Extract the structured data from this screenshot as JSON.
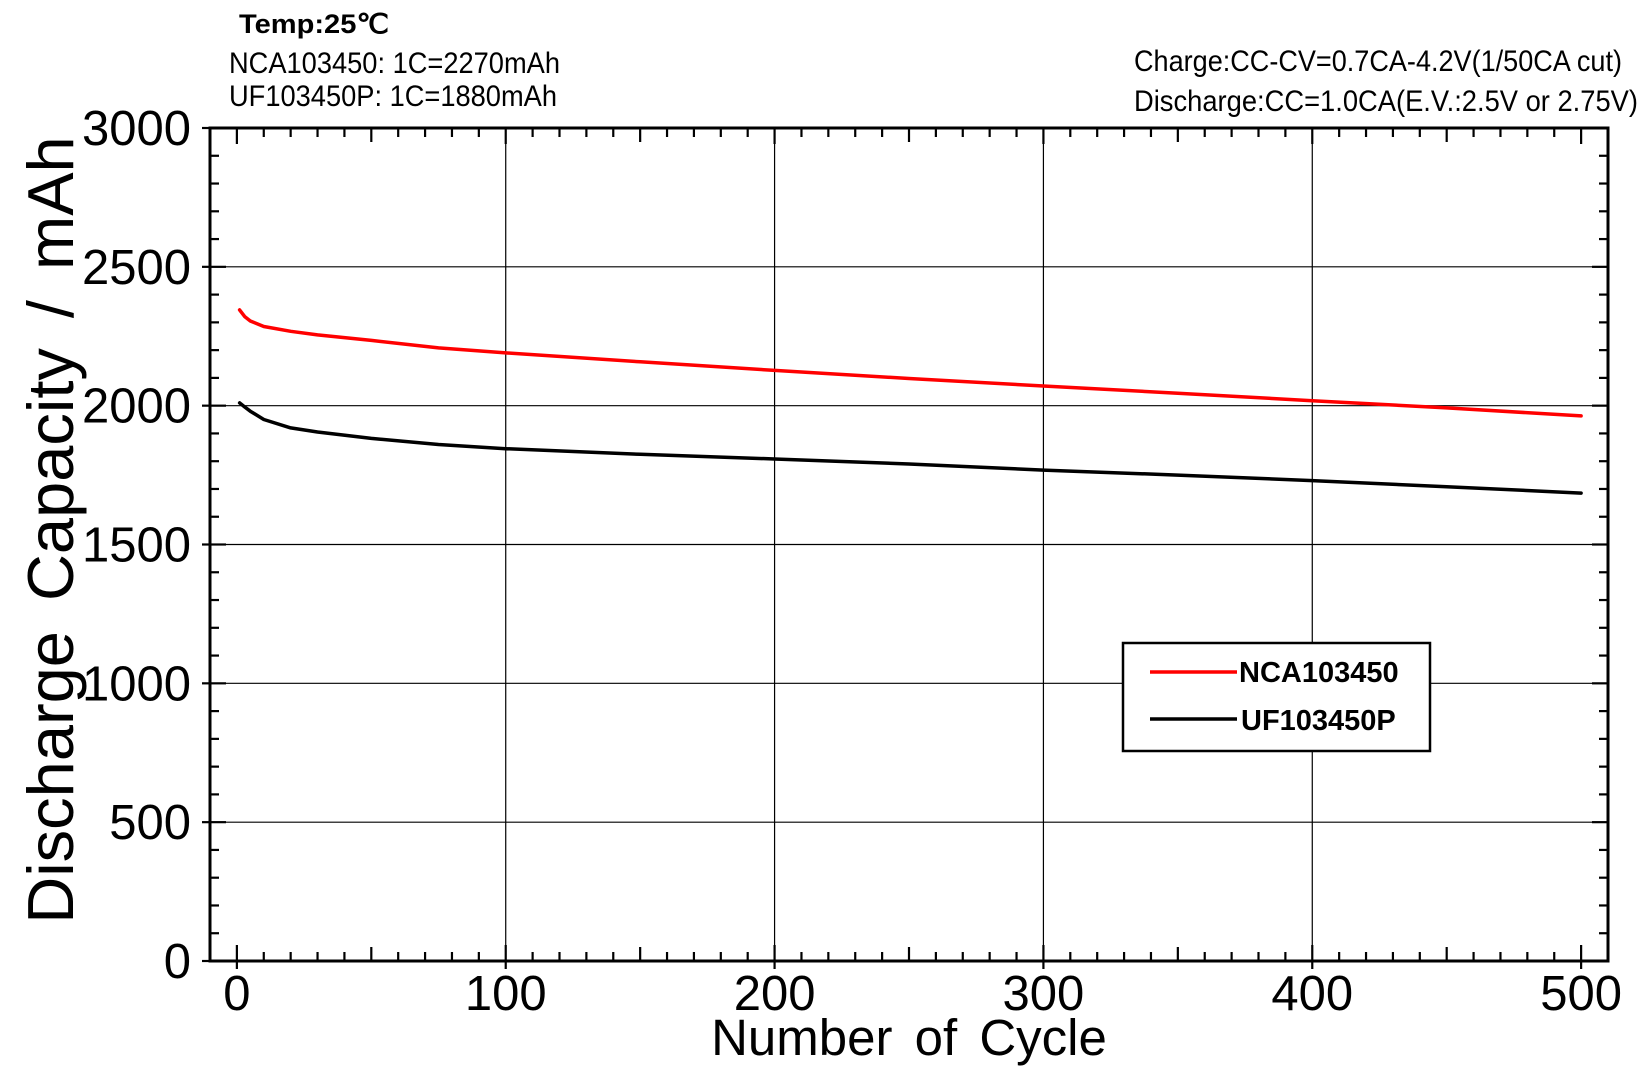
{
  "chart_data": {
    "type": "line",
    "xlabel": "Number of Cycle",
    "ylabel": "Discharge Capacity / mAh",
    "xlim": [
      -10,
      510
    ],
    "ylim": [
      0,
      3000
    ],
    "x_ticks": [
      0,
      100,
      200,
      300,
      400,
      500
    ],
    "y_ticks": [
      0,
      500,
      1000,
      1500,
      2000,
      2500,
      3000
    ],
    "grid": true,
    "legend_position": "lower-right",
    "annotations": {
      "temp": "Temp:25℃",
      "capacity_nca": "NCA103450: 1C=2270mAh",
      "capacity_uf": "UF103450P: 1C=1880mAh",
      "charge": "Charge:CC-CV=0.7CA-4.2V(1/50CA cut)",
      "discharge": "Discharge:CC=1.0CA(E.V.:2.5V or 2.75V)"
    },
    "x": [
      1,
      3,
      5,
      10,
      20,
      30,
      50,
      75,
      100,
      150,
      200,
      250,
      300,
      350,
      400,
      450,
      500
    ],
    "series": [
      {
        "name": "NCA103450",
        "color": "#ff0000",
        "values": [
          2345,
          2320,
          2305,
          2285,
          2268,
          2255,
          2235,
          2208,
          2190,
          2158,
          2127,
          2098,
          2071,
          2045,
          2018,
          1992,
          1963
        ]
      },
      {
        "name": "UF103450P",
        "color": "#000000",
        "values": [
          2010,
          1995,
          1980,
          1950,
          1920,
          1905,
          1882,
          1860,
          1845,
          1825,
          1808,
          1790,
          1768,
          1750,
          1730,
          1708,
          1685
        ]
      }
    ]
  }
}
